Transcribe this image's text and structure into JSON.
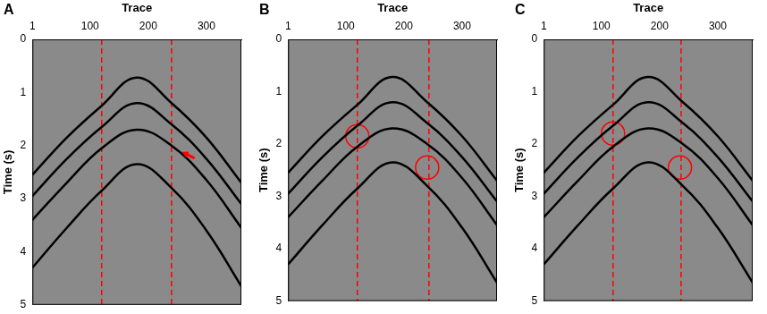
{
  "chart_data": [
    {
      "panel": "A",
      "type": "line",
      "x_label": "Trace",
      "y_label": "Time (s)",
      "xlim": [
        1,
        360
      ],
      "xticks": [
        1,
        100,
        200,
        300
      ],
      "ylim": [
        0,
        5
      ],
      "yticks": [
        0,
        1,
        2,
        3,
        4,
        5
      ],
      "grid": false,
      "x": [
        1,
        60,
        120,
        180,
        240,
        300,
        360
      ],
      "series": [
        {
          "color": "#000000",
          "values": [
            2.55,
            1.85,
            1.25,
            0.72,
            1.2,
            1.85,
            2.7
          ]
        },
        {
          "color": "#000000",
          "values": [
            2.95,
            2.25,
            1.65,
            1.2,
            1.6,
            2.25,
            3.1
          ]
        },
        {
          "color": "#000000",
          "values": [
            3.4,
            2.7,
            2.05,
            1.7,
            2.0,
            2.65,
            3.55
          ]
        },
        {
          "color": "#000000",
          "values": [
            4.3,
            3.55,
            2.85,
            2.35,
            2.8,
            3.6,
            4.65
          ]
        }
      ],
      "vlines": {
        "color": "#ff0000",
        "line_style": "dashed",
        "x": [
          120,
          240
        ]
      },
      "arrows": {
        "color": "#ff0000",
        "points": [
          {
            "x": 258,
            "y": 2.12
          }
        ]
      }
    },
    {
      "panel": "B",
      "type": "line",
      "x_label": "Trace",
      "y_label": "Time (s)",
      "xlim": [
        1,
        360
      ],
      "xticks": [
        1,
        100,
        200,
        300
      ],
      "ylim": [
        0,
        5
      ],
      "yticks": [
        0,
        1,
        2,
        3,
        4,
        5
      ],
      "grid": false,
      "x": [
        1,
        60,
        120,
        180,
        240,
        300,
        360
      ],
      "series": [
        {
          "color": "#000000",
          "values": [
            2.55,
            1.85,
            1.25,
            0.72,
            1.2,
            1.85,
            2.7
          ]
        },
        {
          "color": "#000000",
          "values": [
            2.95,
            2.25,
            1.65,
            1.2,
            1.6,
            2.25,
            3.1
          ]
        },
        {
          "color": "#000000",
          "values": [
            3.4,
            2.7,
            2.05,
            1.7,
            2.0,
            2.65,
            3.55
          ]
        },
        {
          "color": "#000000",
          "values": [
            4.3,
            3.55,
            2.85,
            2.35,
            2.8,
            3.6,
            4.65
          ]
        }
      ],
      "vlines": {
        "color": "#ff0000",
        "line_style": "dashed",
        "x": [
          120,
          243
        ]
      },
      "circles": {
        "color": "#ff0000",
        "points": [
          {
            "x": 120,
            "y": 1.85
          },
          {
            "x": 240,
            "y": 2.45
          }
        ]
      }
    },
    {
      "panel": "C",
      "type": "line",
      "x_label": "Trace",
      "y_label": "Time (s)",
      "xlim": [
        1,
        360
      ],
      "xticks": [
        1,
        100,
        200,
        300
      ],
      "ylim": [
        0,
        5
      ],
      "yticks": [
        0,
        1,
        2,
        3,
        4,
        5
      ],
      "grid": false,
      "x": [
        1,
        60,
        120,
        180,
        240,
        300,
        360
      ],
      "series": [
        {
          "color": "#000000",
          "values": [
            2.55,
            1.85,
            1.25,
            0.72,
            1.2,
            1.85,
            2.7
          ]
        },
        {
          "color": "#000000",
          "values": [
            2.95,
            2.25,
            1.65,
            1.2,
            1.6,
            2.25,
            3.1
          ]
        },
        {
          "color": "#000000",
          "values": [
            3.4,
            2.7,
            2.05,
            1.7,
            2.0,
            2.65,
            3.55
          ]
        },
        {
          "color": "#000000",
          "values": [
            4.3,
            3.55,
            2.85,
            2.35,
            2.8,
            3.6,
            4.65
          ]
        }
      ],
      "vlines": {
        "color": "#ff0000",
        "line_style": "dashed",
        "x": [
          120,
          237
        ]
      },
      "circles": {
        "color": "#ff0000",
        "points": [
          {
            "x": 120,
            "y": 1.8
          },
          {
            "x": 235,
            "y": 2.45
          }
        ]
      }
    }
  ]
}
